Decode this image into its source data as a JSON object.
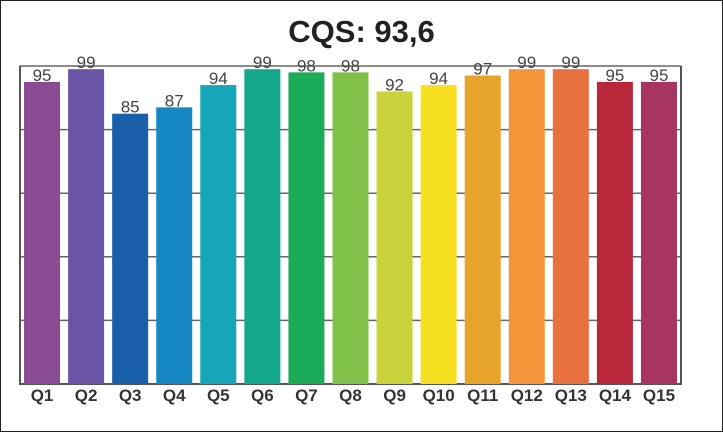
{
  "chart_data": {
    "type": "bar",
    "title": "CQS: 93,6",
    "categories": [
      "Q1",
      "Q2",
      "Q3",
      "Q4",
      "Q5",
      "Q6",
      "Q7",
      "Q8",
      "Q9",
      "Q10",
      "Q11",
      "Q12",
      "Q13",
      "Q14",
      "Q15"
    ],
    "values": [
      95,
      99,
      85,
      87,
      94,
      99,
      98,
      98,
      92,
      94,
      97,
      99,
      99,
      95,
      95
    ],
    "colors": [
      "#8a4b95",
      "#6a55a5",
      "#1a5fa9",
      "#1688c3",
      "#16a5b9",
      "#13a88a",
      "#1cac59",
      "#80c14a",
      "#c8d23a",
      "#f7e021",
      "#e6a42a",
      "#f5953a",
      "#e9713f",
      "#b9283a",
      "#a8355f"
    ],
    "ylim": [
      0,
      100
    ],
    "grid": true,
    "xlabel": "",
    "ylabel": ""
  }
}
